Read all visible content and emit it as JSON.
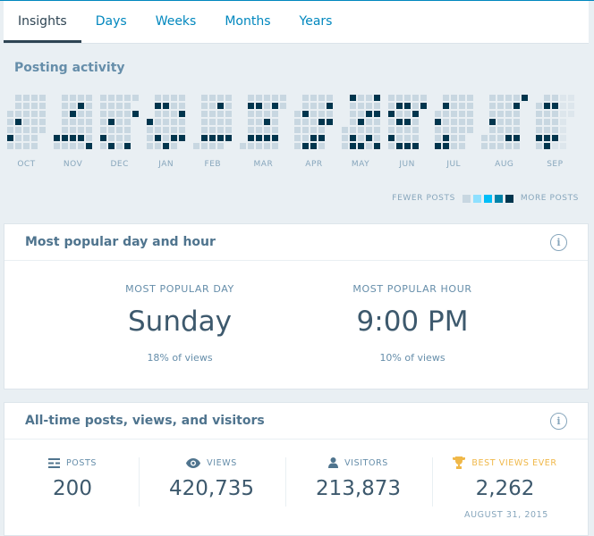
{
  "tabs": [
    {
      "label": "Insights",
      "active": true
    },
    {
      "label": "Days"
    },
    {
      "label": "Weeks"
    },
    {
      "label": "Months"
    },
    {
      "label": "Years"
    }
  ],
  "posting_activity": {
    "title": "Posting activity",
    "legend": {
      "fewer": "FEWER POSTS",
      "more": "MORE POSTS",
      "colors": [
        "#c8d7e1",
        "#8ee0ff",
        "#00bef8",
        "#0083a9",
        "#00354d"
      ]
    },
    "cell_key": {
      ".": "no day",
      "o": "few/no posts",
      "X": "most posts",
      "f": "future"
    },
    "months": [
      {
        "label": "OCT",
        "rows": [
          ".oooo",
          ".oooo",
          "ooooo",
          "oXooo",
          "ooooo",
          "Xooo.",
          "oooo."
        ]
      },
      {
        "label": "NOV",
        "rows": [
          ".oooo",
          ".ooXo",
          ".oXoo",
          ".oooo",
          ".oooo",
          "XXXXo",
          "ooooX"
        ]
      },
      {
        "label": "DEC",
        "rows": [
          "ooooo",
          "oooo.",
          "ooooX",
          "oXoo.",
          "oooo.",
          "Xooo.",
          "oXoX."
        ]
      },
      {
        "label": "JAN",
        "rows": [
          ".oooo",
          ".XXoo",
          ".oooX",
          "Xoooo",
          "ooooo",
          "oXoXX",
          "ooXo."
        ]
      },
      {
        "label": "FEB",
        "rows": [
          ".oooo",
          ".ooXo",
          ".oooo",
          ".oooo",
          ".oooo",
          ".XXXX",
          "oooo."
        ]
      },
      {
        "label": "MAR",
        "rows": [
          ".ooooo",
          ".XXoXo",
          ".oooo.",
          ".ooXo.",
          ".oooo.",
          ".XXXX.",
          "ooooo."
        ]
      },
      {
        "label": "APR",
        "rows": [
          ".oooo",
          ".oooX",
          "oXooo",
          "oooXX",
          "oooo.",
          "ooXX.",
          "oXXo."
        ]
      },
      {
        "label": "MAY",
        "rows": [
          ".XooX",
          ".oooo",
          ".ooXX",
          ".oXoo",
          "ooooo",
          "oXoXo",
          "oXXoX"
        ]
      },
      {
        "label": "JUN",
        "rows": [
          "ooooo",
          "oXXoX",
          "XooX.",
          "oXXo.",
          "oooo.",
          "Xooo.",
          "oXXX."
        ]
      },
      {
        "label": "JUL",
        "rows": [
          ".oooo",
          ".Xooo",
          "ooooo",
          "Xoooo",
          "ooooo",
          "oXoo.",
          "XXoo."
        ]
      },
      {
        "label": "AUG",
        "rows": [
          ".ooooX",
          ".oooX.",
          ".oooo.",
          ".Xooo.",
          ".oooo.",
          "oooXX.",
          "ooooo."
        ]
      },
      {
        "label": "SEP",
        "rows": [
          ".ooff",
          "oXXff",
          "oooff",
          "ooof.",
          "ooof.",
          "XXXf.",
          "oXff."
        ]
      }
    ]
  },
  "popular": {
    "title": "Most popular day and hour",
    "day": {
      "caption": "MOST POPULAR DAY",
      "value": "Sunday",
      "sub": "18% of views"
    },
    "hour": {
      "caption": "MOST POPULAR HOUR",
      "value": "9:00 PM",
      "sub": "10% of views"
    }
  },
  "alltime": {
    "title": "All-time posts, views, and visitors",
    "posts": {
      "label": "POSTS",
      "value": "200"
    },
    "views": {
      "label": "VIEWS",
      "value": "420,735"
    },
    "visitors": {
      "label": "VISITORS",
      "value": "213,873"
    },
    "best": {
      "label": "BEST VIEWS EVER",
      "value": "2,262",
      "date": "AUGUST 31, 2015",
      "color": "#f0b849"
    }
  }
}
